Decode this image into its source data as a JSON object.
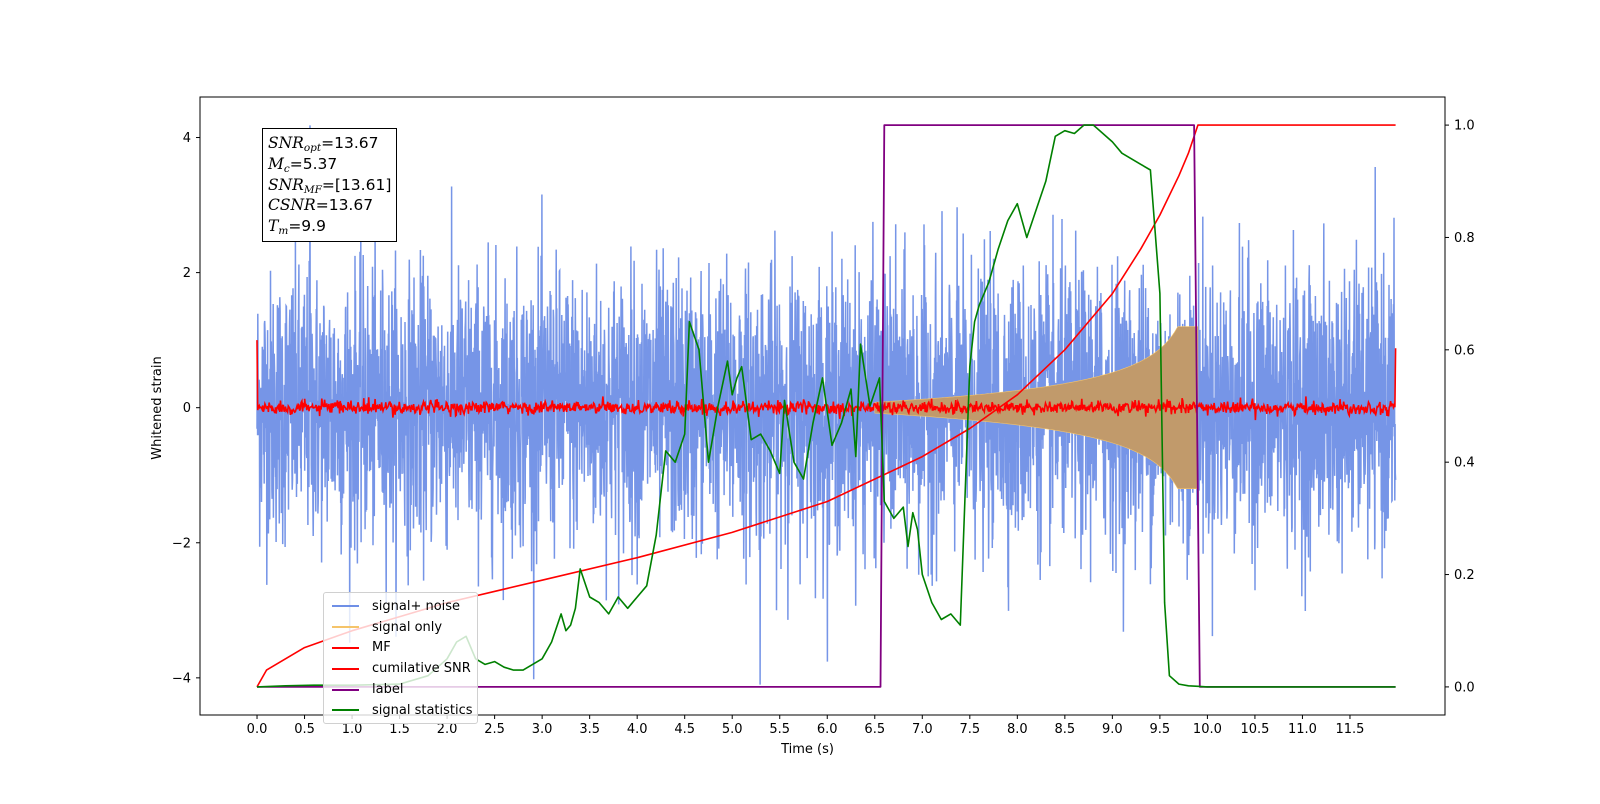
{
  "chart_data": {
    "type": "line",
    "xlabel": "Time (s)",
    "ylabel": "Whitened strain",
    "x_ticks": [
      "0.0",
      "0.5",
      "1.0",
      "1.5",
      "2.0",
      "2.5",
      "3.0",
      "3.5",
      "4.0",
      "4.5",
      "5.0",
      "5.5",
      "6.0",
      "6.5",
      "7.0",
      "7.5",
      "8.0",
      "8.5",
      "9.0",
      "9.5",
      "10.0",
      "10.5",
      "11.0",
      "11.5"
    ],
    "x_range": [
      -0.6,
      12.5
    ],
    "y_left_ticks": [
      "4",
      "2",
      "0",
      "−2",
      "−4"
    ],
    "y_left_range": [
      -4.55,
      4.6
    ],
    "y_right_ticks": [
      "1.0",
      "0.8",
      "0.6",
      "0.4",
      "0.2",
      "0.0"
    ],
    "y_right_range": [
      -0.05,
      1.05
    ],
    "grid": false,
    "legend_position": "lower-left",
    "annotation": {
      "snr_opt": "=13.67",
      "mc": "=5.37",
      "snr_mf": "=[13.61]",
      "csnr": "=13.67",
      "tm": "=9.9"
    },
    "series": [
      {
        "name": "signal+ noise",
        "axis": "left",
        "color": "#6f8fe6",
        "kind": "noise",
        "time_range": [
          0.0,
          11.98
        ],
        "std": 1.0,
        "peak": 4.18,
        "trough": -4.1
      },
      {
        "name": "signal only",
        "axis": "left",
        "color": "#f5c46a",
        "kind": "chirp",
        "start_time": 6.5,
        "merger_time": 9.9,
        "amplitude_at_start": 0.08,
        "amplitude_at_merger": 1.2
      },
      {
        "name": "MF",
        "axis": "left",
        "color": "#ff0000",
        "kind": "noise",
        "time_range": [
          0.0,
          11.98
        ],
        "std": 0.05,
        "edge_values": [
          1.0,
          0.88
        ]
      },
      {
        "name": "cumilative SNR",
        "axis": "right",
        "color": "#ff0000",
        "x": [
          0.0,
          0.1,
          0.5,
          1.0,
          2.0,
          3.0,
          4.0,
          5.0,
          6.0,
          7.0,
          7.5,
          8.0,
          8.5,
          9.0,
          9.3,
          9.5,
          9.7,
          9.8,
          9.9,
          10.0,
          11.98
        ],
        "y": [
          0.0,
          0.03,
          0.07,
          0.1,
          0.15,
          0.19,
          0.23,
          0.275,
          0.33,
          0.41,
          0.46,
          0.52,
          0.6,
          0.7,
          0.78,
          0.84,
          0.91,
          0.95,
          1.0,
          1.0,
          1.0
        ]
      },
      {
        "name": "label",
        "axis": "right",
        "color": "#800080",
        "x": [
          0.0,
          6.56,
          6.6,
          9.86,
          9.92,
          11.98
        ],
        "y": [
          0.0,
          0.0,
          1.0,
          1.0,
          0.0,
          0.0
        ]
      },
      {
        "name": "signal statistics",
        "axis": "right",
        "color": "#008000",
        "x": [
          0.0,
          0.3,
          0.6,
          1.0,
          1.5,
          1.8,
          2.0,
          2.1,
          2.2,
          2.3,
          2.4,
          2.5,
          2.6,
          2.7,
          2.8,
          3.0,
          3.1,
          3.2,
          3.25,
          3.3,
          3.35,
          3.4,
          3.5,
          3.6,
          3.7,
          3.8,
          3.9,
          4.0,
          4.1,
          4.2,
          4.3,
          4.4,
          4.5,
          4.55,
          4.65,
          4.75,
          4.85,
          4.95,
          5.0,
          5.05,
          5.1,
          5.2,
          5.3,
          5.4,
          5.5,
          5.55,
          5.65,
          5.75,
          5.85,
          5.95,
          6.05,
          6.15,
          6.25,
          6.3,
          6.35,
          6.45,
          6.55,
          6.6,
          6.7,
          6.8,
          6.85,
          6.9,
          6.95,
          7.0,
          7.1,
          7.2,
          7.3,
          7.4,
          7.5,
          7.55,
          7.6,
          7.7,
          7.8,
          7.9,
          8.0,
          8.1,
          8.2,
          8.3,
          8.4,
          8.5,
          8.6,
          8.7,
          8.8,
          9.0,
          9.1,
          9.2,
          9.3,
          9.4,
          9.5,
          9.55,
          9.6,
          9.7,
          9.8,
          9.9,
          10.0,
          11.0,
          11.98
        ],
        "y": [
          0.0,
          0.002,
          0.003,
          0.003,
          0.005,
          0.02,
          0.05,
          0.08,
          0.09,
          0.05,
          0.04,
          0.045,
          0.035,
          0.03,
          0.03,
          0.05,
          0.08,
          0.13,
          0.1,
          0.11,
          0.14,
          0.21,
          0.16,
          0.15,
          0.13,
          0.16,
          0.14,
          0.16,
          0.18,
          0.27,
          0.42,
          0.4,
          0.45,
          0.65,
          0.6,
          0.4,
          0.5,
          0.58,
          0.52,
          0.55,
          0.57,
          0.44,
          0.45,
          0.42,
          0.38,
          0.51,
          0.4,
          0.37,
          0.47,
          0.55,
          0.43,
          0.47,
          0.53,
          0.41,
          0.61,
          0.5,
          0.55,
          0.33,
          0.3,
          0.32,
          0.25,
          0.31,
          0.28,
          0.2,
          0.15,
          0.12,
          0.13,
          0.11,
          0.57,
          0.65,
          0.68,
          0.72,
          0.78,
          0.83,
          0.86,
          0.8,
          0.85,
          0.9,
          0.98,
          0.99,
          0.985,
          1.0,
          1.0,
          0.97,
          0.95,
          0.94,
          0.93,
          0.92,
          0.7,
          0.15,
          0.02,
          0.005,
          0.002,
          0.001,
          0.0,
          0.0,
          0.0
        ]
      }
    ]
  }
}
